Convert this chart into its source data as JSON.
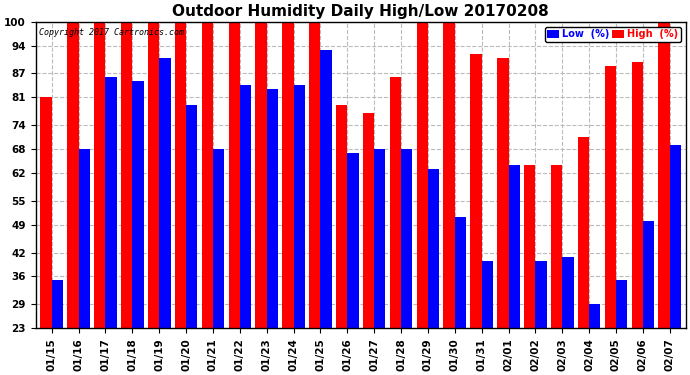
{
  "title": "Outdoor Humidity Daily High/Low 20170208",
  "copyright": "Copyright 2017 Cartronics.com",
  "dates": [
    "01/15",
    "01/16",
    "01/17",
    "01/18",
    "01/19",
    "01/20",
    "01/21",
    "01/22",
    "01/23",
    "01/24",
    "01/25",
    "01/26",
    "01/27",
    "01/28",
    "01/29",
    "01/30",
    "01/31",
    "02/01",
    "02/02",
    "02/03",
    "02/04",
    "02/05",
    "02/06",
    "02/07"
  ],
  "low_values": [
    35,
    68,
    86,
    85,
    91,
    79,
    68,
    84,
    83,
    84,
    93,
    67,
    68,
    68,
    63,
    51,
    40,
    64,
    40,
    41,
    29,
    35,
    50,
    69
  ],
  "high_values": [
    81,
    100,
    100,
    100,
    100,
    100,
    100,
    100,
    100,
    100,
    100,
    79,
    77,
    86,
    100,
    100,
    92,
    91,
    64,
    64,
    71,
    89,
    90,
    100
  ],
  "low_color": "#0000ff",
  "high_color": "#ff0000",
  "bg_color": "#ffffff",
  "yticks": [
    23,
    29,
    36,
    42,
    49,
    55,
    62,
    68,
    74,
    81,
    87,
    94,
    100
  ],
  "ymin": 23,
  "ymax": 100,
  "grid_color": "#bbbbbb",
  "title_fontsize": 11,
  "tick_fontsize": 7.5,
  "bar_width": 0.42,
  "legend_low_label": "Low  (%)",
  "legend_high_label": "High  (%)"
}
